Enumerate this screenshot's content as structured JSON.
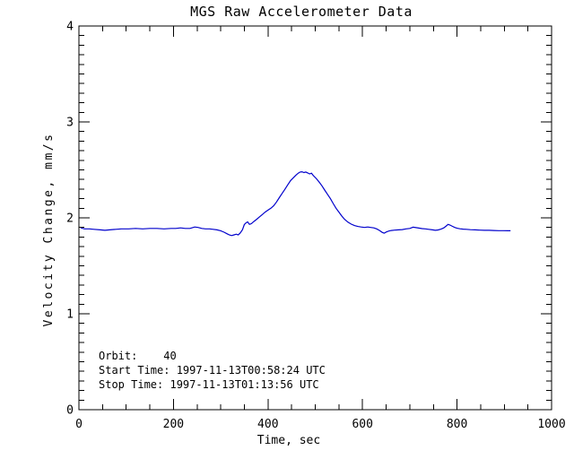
{
  "page": {
    "background_color": "#ffffff",
    "text_color": "#000000"
  },
  "chart_data": {
    "type": "line",
    "title": "MGS Raw Accelerometer Data",
    "xlabel": "Time, sec",
    "ylabel": "Velocity Change, mm/s",
    "xlim": [
      0,
      1000
    ],
    "ylim": [
      0,
      4
    ],
    "x_ticks": [
      0,
      200,
      400,
      600,
      800,
      1000
    ],
    "y_ticks": [
      0,
      1,
      2,
      3,
      4
    ],
    "x_minor_interval": 50,
    "y_minor_interval": 0.1,
    "grid": false,
    "legend": "none",
    "line_color": "#0000cc",
    "axis_color": "#000000",
    "series": [
      {
        "name": "velocity-change-trace",
        "points": [
          [
            4,
            1.895
          ],
          [
            12,
            1.885
          ],
          [
            22,
            1.885
          ],
          [
            32,
            1.88
          ],
          [
            45,
            1.875
          ],
          [
            55,
            1.87
          ],
          [
            65,
            1.875
          ],
          [
            78,
            1.88
          ],
          [
            90,
            1.885
          ],
          [
            105,
            1.885
          ],
          [
            120,
            1.89
          ],
          [
            135,
            1.885
          ],
          [
            150,
            1.89
          ],
          [
            165,
            1.89
          ],
          [
            180,
            1.885
          ],
          [
            195,
            1.89
          ],
          [
            205,
            1.89
          ],
          [
            215,
            1.895
          ],
          [
            225,
            1.89
          ],
          [
            235,
            1.89
          ],
          [
            245,
            1.905
          ],
          [
            252,
            1.9
          ],
          [
            260,
            1.89
          ],
          [
            268,
            1.885
          ],
          [
            276,
            1.885
          ],
          [
            284,
            1.88
          ],
          [
            292,
            1.875
          ],
          [
            300,
            1.865
          ],
          [
            307,
            1.85
          ],
          [
            313,
            1.835
          ],
          [
            318,
            1.822
          ],
          [
            323,
            1.815
          ],
          [
            328,
            1.822
          ],
          [
            333,
            1.83
          ],
          [
            337,
            1.822
          ],
          [
            341,
            1.84
          ],
          [
            346,
            1.875
          ],
          [
            350,
            1.93
          ],
          [
            354,
            1.95
          ],
          [
            357,
            1.958
          ],
          [
            361,
            1.932
          ],
          [
            365,
            1.94
          ],
          [
            370,
            1.962
          ],
          [
            376,
            1.985
          ],
          [
            382,
            2.01
          ],
          [
            388,
            2.035
          ],
          [
            394,
            2.06
          ],
          [
            400,
            2.08
          ],
          [
            406,
            2.1
          ],
          [
            412,
            2.125
          ],
          [
            418,
            2.165
          ],
          [
            424,
            2.21
          ],
          [
            430,
            2.255
          ],
          [
            436,
            2.3
          ],
          [
            442,
            2.345
          ],
          [
            448,
            2.39
          ],
          [
            454,
            2.42
          ],
          [
            459,
            2.445
          ],
          [
            464,
            2.465
          ],
          [
            468,
            2.478
          ],
          [
            472,
            2.48
          ],
          [
            476,
            2.472
          ],
          [
            480,
            2.478
          ],
          [
            484,
            2.468
          ],
          [
            488,
            2.458
          ],
          [
            492,
            2.465
          ],
          [
            496,
            2.44
          ],
          [
            502,
            2.41
          ],
          [
            508,
            2.375
          ],
          [
            514,
            2.335
          ],
          [
            520,
            2.29
          ],
          [
            526,
            2.245
          ],
          [
            532,
            2.2
          ],
          [
            538,
            2.15
          ],
          [
            544,
            2.1
          ],
          [
            550,
            2.06
          ],
          [
            556,
            2.02
          ],
          [
            562,
            1.985
          ],
          [
            569,
            1.955
          ],
          [
            576,
            1.935
          ],
          [
            583,
            1.92
          ],
          [
            590,
            1.91
          ],
          [
            597,
            1.905
          ],
          [
            604,
            1.9
          ],
          [
            611,
            1.905
          ],
          [
            617,
            1.9
          ],
          [
            624,
            1.895
          ],
          [
            630,
            1.885
          ],
          [
            636,
            1.868
          ],
          [
            642,
            1.848
          ],
          [
            646,
            1.84
          ],
          [
            650,
            1.852
          ],
          [
            655,
            1.862
          ],
          [
            661,
            1.868
          ],
          [
            668,
            1.872
          ],
          [
            676,
            1.875
          ],
          [
            684,
            1.878
          ],
          [
            692,
            1.885
          ],
          [
            700,
            1.89
          ],
          [
            707,
            1.903
          ],
          [
            713,
            1.898
          ],
          [
            719,
            1.893
          ],
          [
            726,
            1.888
          ],
          [
            733,
            1.885
          ],
          [
            740,
            1.88
          ],
          [
            748,
            1.875
          ],
          [
            754,
            1.87
          ],
          [
            760,
            1.874
          ],
          [
            766,
            1.882
          ],
          [
            772,
            1.895
          ],
          [
            777,
            1.915
          ],
          [
            781,
            1.932
          ],
          [
            785,
            1.925
          ],
          [
            790,
            1.912
          ],
          [
            795,
            1.9
          ],
          [
            800,
            1.892
          ],
          [
            806,
            1.886
          ],
          [
            813,
            1.882
          ],
          [
            820,
            1.88
          ],
          [
            828,
            1.877
          ],
          [
            838,
            1.875
          ],
          [
            848,
            1.872
          ],
          [
            858,
            1.87
          ],
          [
            868,
            1.87
          ],
          [
            878,
            1.868
          ],
          [
            888,
            1.866
          ],
          [
            898,
            1.866
          ],
          [
            908,
            1.865
          ],
          [
            913,
            1.865
          ]
        ]
      }
    ],
    "annotations": [
      "Orbit:    40",
      "Start Time: 1997-11-13T00:58:24 UTC",
      "Stop Time: 1997-11-13T01:13:56 UTC"
    ]
  }
}
